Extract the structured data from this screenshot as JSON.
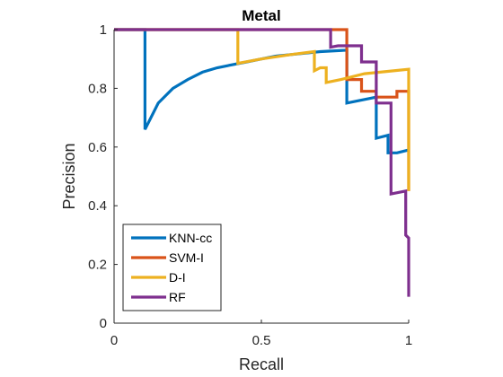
{
  "chart_data": {
    "type": "line",
    "title": "Metal",
    "xlabel": "Recall",
    "ylabel": "Precision",
    "xlim": [
      0,
      1
    ],
    "ylim": [
      0,
      1
    ],
    "xticks": [
      0,
      0.5,
      1
    ],
    "xtick_labels": [
      "0",
      "0.5",
      "1"
    ],
    "yticks": [
      0,
      0.2,
      0.4,
      0.6,
      0.8,
      1
    ],
    "ytick_labels": [
      "0",
      "0.2",
      "0.4",
      "0.6",
      "0.8",
      "1"
    ],
    "grid": false,
    "legend_position": "bottom-left",
    "series": [
      {
        "name": "KNN-cc",
        "color": "#0072BD",
        "points": [
          [
            0,
            1
          ],
          [
            0.105,
            1
          ],
          [
            0.105,
            0.66
          ],
          [
            0.15,
            0.75
          ],
          [
            0.2,
            0.8
          ],
          [
            0.25,
            0.83
          ],
          [
            0.3,
            0.855
          ],
          [
            0.35,
            0.87
          ],
          [
            0.4,
            0.88
          ],
          [
            0.45,
            0.89
          ],
          [
            0.5,
            0.9
          ],
          [
            0.55,
            0.91
          ],
          [
            0.6,
            0.915
          ],
          [
            0.65,
            0.92
          ],
          [
            0.7,
            0.925
          ],
          [
            0.79,
            0.93
          ],
          [
            0.79,
            0.75
          ],
          [
            0.89,
            0.77
          ],
          [
            0.89,
            0.63
          ],
          [
            0.93,
            0.64
          ],
          [
            0.93,
            0.58
          ],
          [
            0.96,
            0.58
          ],
          [
            0.96,
            0.58
          ],
          [
            1.0,
            0.59
          ]
        ]
      },
      {
        "name": "SVM-I",
        "color": "#D95319",
        "points": [
          [
            0,
            1
          ],
          [
            0.79,
            1
          ],
          [
            0.79,
            0.83
          ],
          [
            0.84,
            0.83
          ],
          [
            0.84,
            0.79
          ],
          [
            0.89,
            0.79
          ],
          [
            0.89,
            0.77
          ],
          [
            0.96,
            0.77
          ],
          [
            0.96,
            0.79
          ],
          [
            1.0,
            0.79
          ],
          [
            1.0,
            0.45
          ]
        ]
      },
      {
        "name": "D-I",
        "color": "#EDB120",
        "points": [
          [
            0,
            1
          ],
          [
            0.42,
            1
          ],
          [
            0.42,
            0.885
          ],
          [
            0.5,
            0.9
          ],
          [
            0.6,
            0.915
          ],
          [
            0.68,
            0.925
          ],
          [
            0.68,
            0.86
          ],
          [
            0.7,
            0.87
          ],
          [
            0.72,
            0.87
          ],
          [
            0.72,
            0.82
          ],
          [
            0.77,
            0.83
          ],
          [
            0.85,
            0.85
          ],
          [
            1.0,
            0.865
          ],
          [
            1.0,
            0.45
          ]
        ]
      },
      {
        "name": "RF",
        "color": "#7E2F8E",
        "points": [
          [
            0,
            1
          ],
          [
            0.735,
            1
          ],
          [
            0.735,
            0.94
          ],
          [
            0.76,
            0.945
          ],
          [
            0.84,
            0.945
          ],
          [
            0.84,
            0.89
          ],
          [
            0.89,
            0.89
          ],
          [
            0.89,
            0.75
          ],
          [
            0.94,
            0.75
          ],
          [
            0.94,
            0.44
          ],
          [
            0.99,
            0.45
          ],
          [
            0.99,
            0.3
          ],
          [
            1.0,
            0.29
          ],
          [
            1.0,
            0.09
          ]
        ]
      }
    ]
  }
}
